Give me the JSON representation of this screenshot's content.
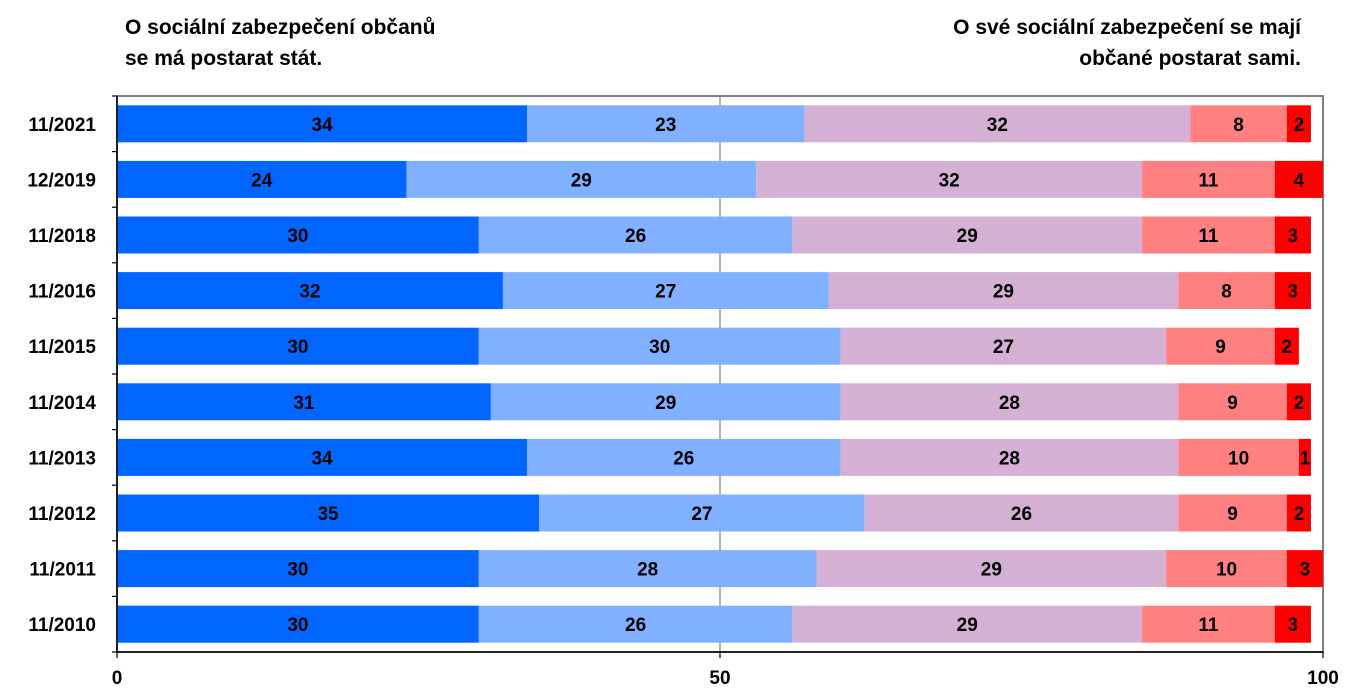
{
  "headers": {
    "left": [
      "O sociální zabezpečení občanů",
      "se má postarat stát."
    ],
    "right": [
      "O své sociální zabezpečení se mají",
      "občané postarat sami."
    ]
  },
  "chart_data": {
    "type": "bar",
    "orientation": "horizontal",
    "stacked": true,
    "categories": [
      "11/2021",
      "12/2019",
      "11/2018",
      "11/2016",
      "11/2015",
      "11/2014",
      "11/2013",
      "11/2012",
      "11/2011",
      "11/2010"
    ],
    "series": [
      {
        "color": "#0066ff",
        "values": [
          34,
          24,
          30,
          32,
          30,
          31,
          34,
          35,
          30,
          30
        ]
      },
      {
        "color": "#80b0ff",
        "values": [
          23,
          29,
          26,
          27,
          30,
          29,
          26,
          27,
          28,
          26
        ]
      },
      {
        "color": "#d4b0d4",
        "values": [
          32,
          32,
          29,
          29,
          27,
          28,
          28,
          26,
          29,
          29
        ]
      },
      {
        "color": "#ff8080",
        "values": [
          8,
          11,
          11,
          8,
          9,
          9,
          10,
          9,
          10,
          11
        ]
      },
      {
        "color": "#ff0000",
        "values": [
          2,
          4,
          3,
          3,
          2,
          2,
          1,
          2,
          3,
          3
        ]
      }
    ],
    "xlim": [
      0,
      100
    ],
    "xticks": [
      0,
      50,
      100
    ],
    "gridlines": [
      50
    ]
  }
}
